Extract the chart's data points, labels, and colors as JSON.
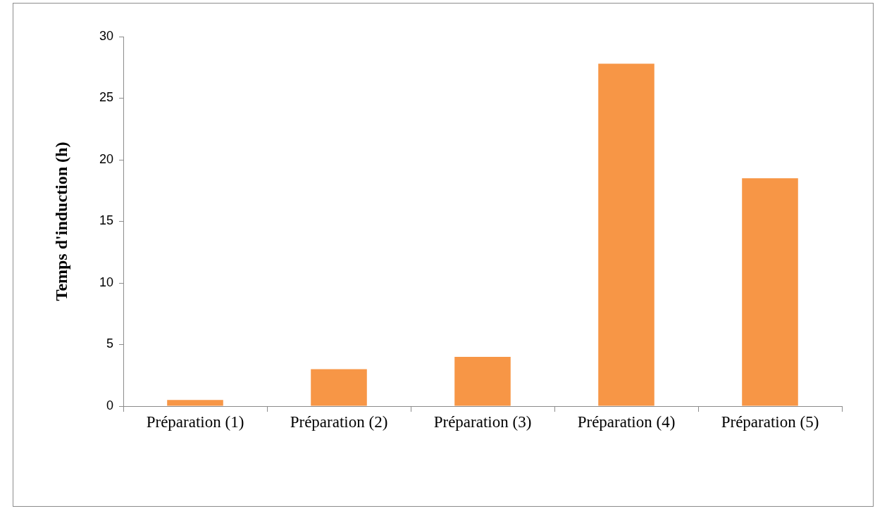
{
  "chart_data": {
    "type": "bar",
    "ylabel": "Temps d'induction (h)",
    "categories": [
      "Préparation (1)",
      "Préparation (2)",
      "Préparation (3)",
      "Préparation (4)",
      "Préparation (5)"
    ],
    "values": [
      0.5,
      3,
      4,
      27.8,
      18.5
    ],
    "color": "#f79646",
    "ylim": [
      0,
      30
    ],
    "yticks": [
      0,
      5,
      10,
      15,
      20,
      25,
      30
    ],
    "grid": false,
    "legend": false
  }
}
